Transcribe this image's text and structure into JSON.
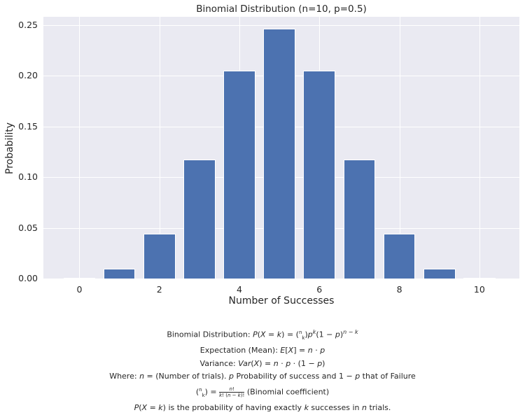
{
  "chart_data": {
    "type": "bar",
    "title": "Binomial Distribution (n=10, p=0.5)",
    "xlabel": "Number of Successes",
    "ylabel": "Probability",
    "categories": [
      0,
      1,
      2,
      3,
      4,
      5,
      6,
      7,
      8,
      9,
      10
    ],
    "values": [
      0.001,
      0.0098,
      0.0439,
      0.1172,
      0.2051,
      0.2461,
      0.2051,
      0.1172,
      0.0439,
      0.0098,
      0.001
    ],
    "xticks": [
      "0",
      "2",
      "4",
      "6",
      "8",
      "10"
    ],
    "yticks": [
      "0.00",
      "0.05",
      "0.10",
      "0.15",
      "0.20",
      "0.25"
    ],
    "xlim": [
      -0.9,
      11.0
    ],
    "ylim": [
      0,
      0.258
    ],
    "grid": true,
    "bar_color": "#4c72b0",
    "background": "#eaeaf2"
  },
  "annotations": {
    "line1_prefix": "Binomial Distribution: ",
    "line1_formula": "P(X = k) = (n k) p^k (1 − p)^(n − k)",
    "line2_prefix": "Expectation (Mean): ",
    "line2_formula": "E[X] = n · p",
    "line3_prefix": "Variance: ",
    "line3_formula": "Var(X) = n · p · (1 − p)",
    "line4": "Where: n = (Number of trials). p Probability of success and 1 − p that of Failure",
    "line5_formula": "(n k) = n! / (k! (n − k)!)",
    "line5_suffix": " (Binomial coefficient)",
    "line6": "P(X = k) is the probability of having exactly k successes in n trials."
  }
}
